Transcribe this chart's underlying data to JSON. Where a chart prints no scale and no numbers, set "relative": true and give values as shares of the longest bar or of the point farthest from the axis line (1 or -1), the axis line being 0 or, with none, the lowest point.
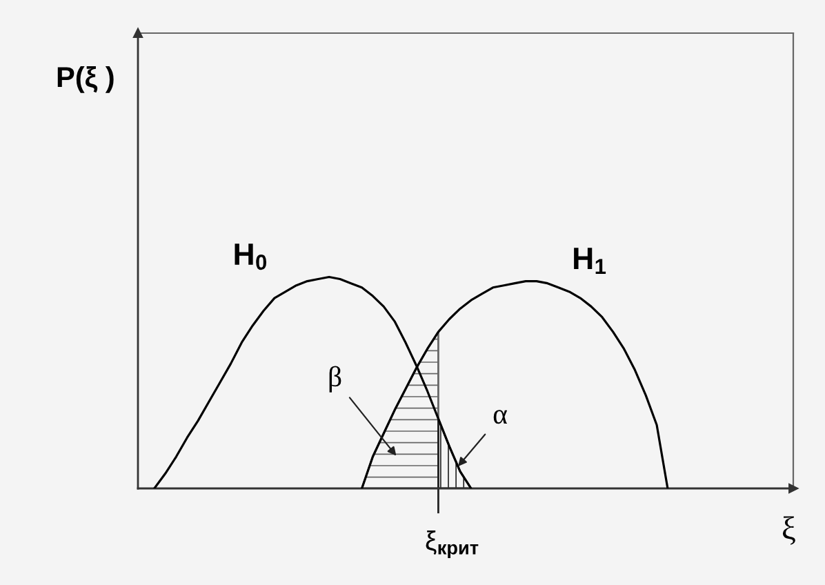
{
  "chart_data": {
    "type": "line",
    "relative": true,
    "xlabel": "ξ",
    "annotations": [
      "P(ξ )",
      "ξ$_{крит}$"
    ],
    "categories": [
      null,
      null,
      null,
      null,
      null,
      null,
      null,
      null,
      null,
      null,
      null,
      null,
      null,
      null,
      null,
      null,
      null,
      null,
      null,
      null,
      null,
      null,
      null,
      null,
      null,
      null,
      null,
      null,
      null,
      null,
      null,
      null,
      null,
      null,
      null,
      null,
      null,
      null,
      null,
      null,
      null,
      null,
      null,
      null,
      null,
      null,
      null,
      null,
      null,
      null,
      null,
      null,
      null,
      null,
      null,
      null,
      null,
      null,
      null,
      null
    ],
    "series": [
      {
        "name": "β",
        "type": "area",
        "color": "#666666",
        "values": [
          null,
          null,
          null,
          null,
          null,
          null,
          null,
          null,
          null,
          null,
          null,
          null,
          null,
          null,
          null,
          null,
          null,
          null,
          null,
          null,
          0,
          0.15,
          0.26,
          0.37,
          0.47,
          0.57,
          0.66,
          0.74,
          null,
          null,
          null,
          null,
          null,
          null,
          null,
          null,
          null,
          null,
          null,
          null,
          null,
          null,
          null,
          null,
          null,
          null,
          null,
          null,
          null,
          null,
          null,
          null,
          null,
          null,
          null,
          null,
          null,
          null,
          null,
          null
        ]
      },
      {
        "name": "α",
        "type": "area",
        "color": "#222222",
        "values": [
          null,
          null,
          null,
          null,
          null,
          null,
          null,
          null,
          null,
          null,
          null,
          null,
          null,
          null,
          null,
          null,
          null,
          null,
          null,
          null,
          null,
          null,
          null,
          null,
          null,
          null,
          null,
          0.33,
          0.2,
          0.08,
          0,
          null,
          null,
          null,
          null,
          null,
          null,
          null,
          null,
          null,
          null,
          null,
          null,
          null,
          null,
          null,
          null,
          null,
          null,
          null,
          null,
          null,
          null,
          null,
          null,
          null,
          null,
          null,
          null,
          null
        ]
      },
      {
        "name": "H$_{0}$",
        "color": "#000000",
        "values": [
          null,
          0,
          0.07,
          0.15,
          0.24,
          0.32,
          0.41,
          0.5,
          0.59,
          0.69,
          0.77,
          0.84,
          0.9,
          0.93,
          0.96,
          0.98,
          0.99,
          1,
          0.99,
          0.97,
          0.95,
          0.91,
          0.86,
          0.79,
          0.69,
          0.58,
          0.46,
          0.33,
          0.2,
          0.08,
          0,
          null,
          null,
          null,
          null,
          null,
          null,
          null,
          null,
          null,
          null,
          null,
          null,
          null,
          null,
          null,
          null,
          null,
          null,
          null,
          null,
          null,
          null,
          null,
          null,
          null,
          null,
          null,
          null,
          null
        ]
      },
      {
        "name": "H$_{1}$",
        "color": "#000000",
        "values": [
          null,
          null,
          null,
          null,
          null,
          null,
          null,
          null,
          null,
          null,
          null,
          null,
          null,
          null,
          null,
          null,
          null,
          null,
          null,
          null,
          0,
          0.15,
          0.26,
          0.37,
          0.47,
          0.57,
          0.66,
          0.74,
          0.8,
          0.85,
          0.89,
          0.92,
          0.95,
          0.96,
          0.97,
          0.98,
          0.98,
          0.97,
          0.95,
          0.93,
          0.9,
          0.86,
          0.81,
          0.74,
          0.66,
          0.56,
          0.44,
          0.3,
          0,
          null,
          null,
          null,
          null,
          null,
          null,
          null,
          null,
          null,
          null,
          null
        ]
      }
    ]
  }
}
